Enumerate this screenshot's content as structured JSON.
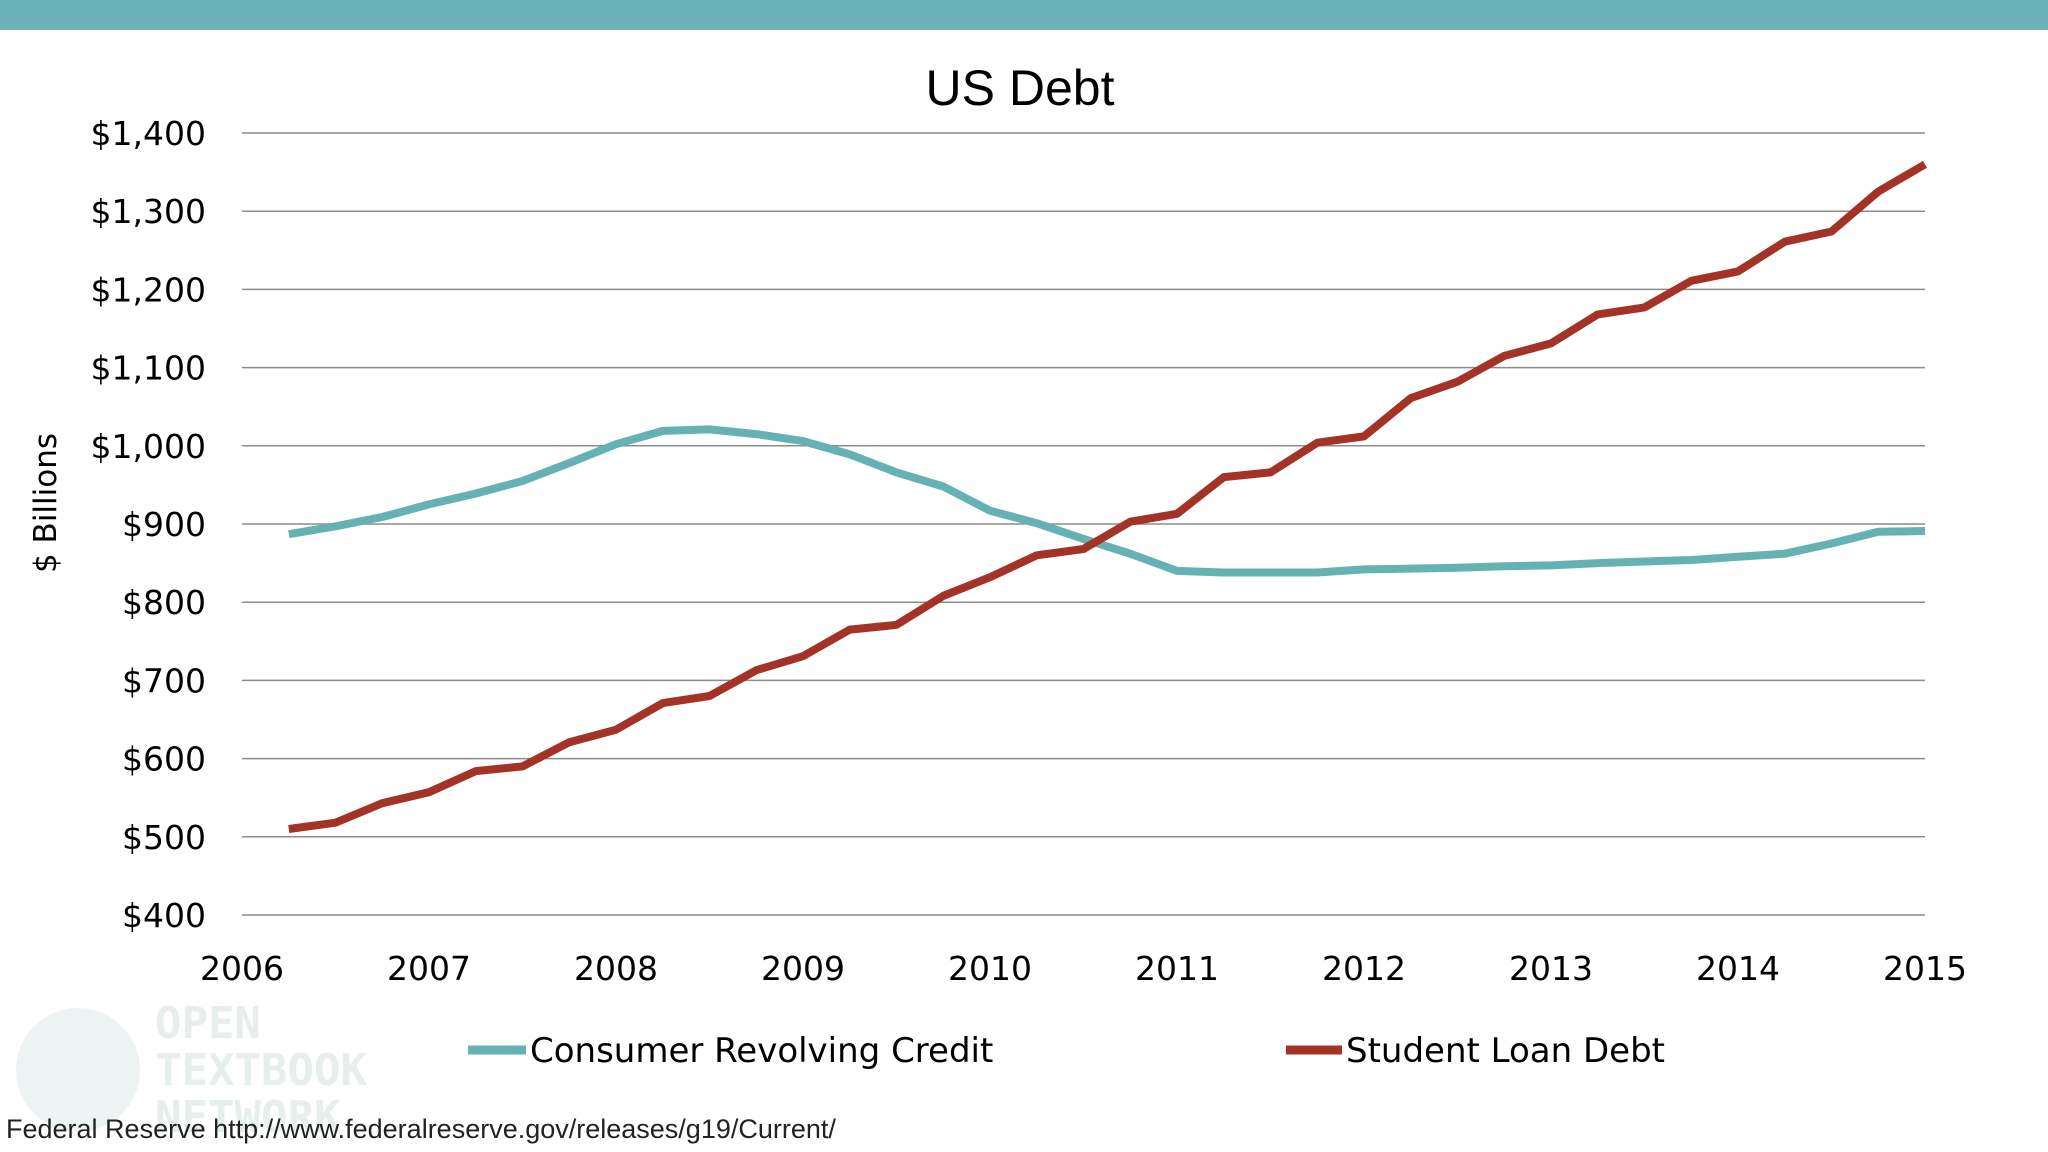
{
  "colors": {
    "top_bar": "#6bb1b5",
    "consumer": "#66b2b3",
    "student": "#a23326",
    "grid": "#8c8c8c"
  },
  "source": "Federal Reserve http://www.federalreserve.gov/releases/g19/Current/",
  "watermark": {
    "lines": [
      "OPEN",
      "TEXTBOOK",
      "NETWORK"
    ]
  },
  "chart_data": {
    "type": "line",
    "title": "US Debt",
    "xlabel": "",
    "ylabel": "$ Billions",
    "xlim": [
      2006,
      2015
    ],
    "ylim": [
      400,
      1400
    ],
    "x_ticks": [
      2006,
      2007,
      2008,
      2009,
      2010,
      2011,
      2012,
      2013,
      2014,
      2015
    ],
    "x_tick_labels": [
      "2006",
      "2007",
      "2008",
      "2009",
      "2010",
      "2011",
      "2012",
      "2013",
      "2014",
      "2015"
    ],
    "y_ticks": [
      400,
      500,
      600,
      700,
      800,
      900,
      1000,
      1100,
      1200,
      1300,
      1400
    ],
    "y_tick_labels": [
      "$400",
      "$500",
      "$600",
      "$700",
      "$800",
      "$900",
      "$1,000",
      "$1,100",
      "$1,200",
      "$1,300",
      "$1,400"
    ],
    "grid": "horizontal",
    "legend": "bottom",
    "x": [
      2006.25,
      2006.5,
      2006.75,
      2007.0,
      2007.25,
      2007.5,
      2007.75,
      2008.0,
      2008.25,
      2008.5,
      2008.75,
      2009.0,
      2009.25,
      2009.5,
      2009.75,
      2010.0,
      2010.25,
      2010.5,
      2010.75,
      2011.0,
      2011.25,
      2011.5,
      2011.75,
      2012.0,
      2012.25,
      2012.5,
      2012.75,
      2013.0,
      2013.25,
      2013.5,
      2013.75,
      2014.0,
      2014.25,
      2014.5,
      2014.75,
      2015.0
    ],
    "series": [
      {
        "name": "Consumer Revolving Credit",
        "color": "#66b2b3",
        "values": [
          887,
          897,
          909,
          925,
          939,
          955,
          978,
          1002,
          1019,
          1021,
          1015,
          1006,
          989,
          966,
          948,
          917,
          901,
          881,
          862,
          840,
          838,
          838,
          838,
          842,
          843,
          844,
          846,
          847,
          850,
          852,
          854,
          858,
          862,
          875,
          890,
          891
        ]
      },
      {
        "name": "Student Loan Debt",
        "color": "#a23326",
        "values": [
          510,
          518,
          543,
          557,
          584,
          590,
          621,
          637,
          671,
          680,
          713,
          731,
          765,
          771,
          808,
          832,
          860,
          868,
          903,
          913,
          960,
          966,
          1004,
          1012,
          1061,
          1082,
          1115,
          1131,
          1168,
          1177,
          1211,
          1223,
          1261,
          1274,
          1325,
          1360
        ]
      }
    ]
  }
}
